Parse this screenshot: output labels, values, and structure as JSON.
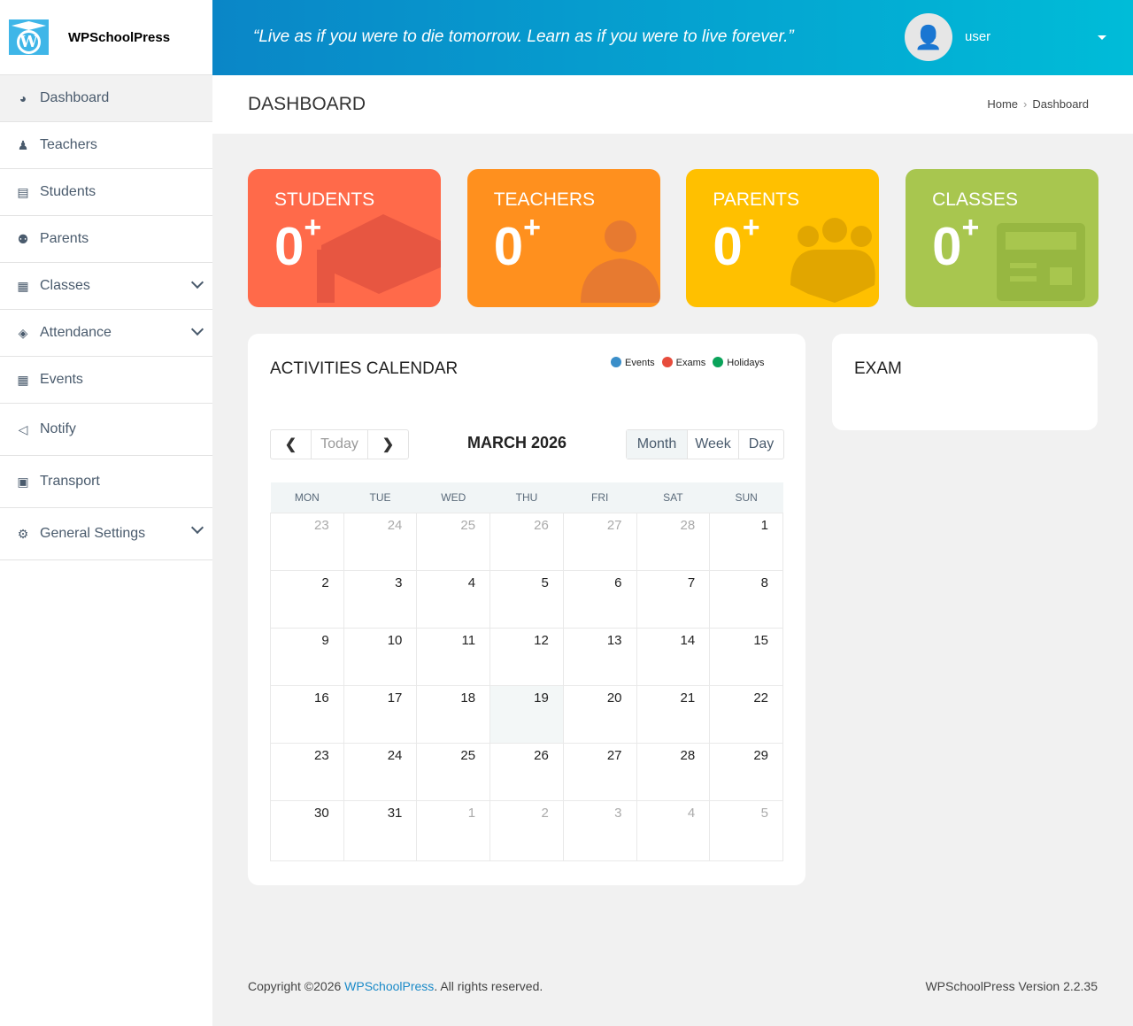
{
  "brand": {
    "name": "WPSchoolPress"
  },
  "sidebar": {
    "items": [
      {
        "label": "Dashboard",
        "icon": "dashboard-icon",
        "glyph": "◕",
        "active": true
      },
      {
        "label": "Teachers",
        "icon": "teacher-icon",
        "glyph": "♟"
      },
      {
        "label": "Students",
        "icon": "student-card-icon",
        "glyph": "▤"
      },
      {
        "label": "Parents",
        "icon": "parents-icon",
        "glyph": "⚉"
      },
      {
        "label": "Classes",
        "icon": "classes-icon",
        "glyph": "▦",
        "expand": true
      },
      {
        "label": "Attendance",
        "icon": "attendance-icon",
        "glyph": "◈",
        "expand": true
      },
      {
        "label": "Events",
        "icon": "calendar-icon",
        "glyph": "▦"
      },
      {
        "label": "Notify",
        "icon": "megaphone-icon",
        "glyph": "◁"
      },
      {
        "label": "Transport",
        "icon": "bus-icon",
        "glyph": "▣"
      },
      {
        "label": "General Settings",
        "icon": "gear-icon",
        "glyph": "⚙",
        "expand": true
      }
    ]
  },
  "header": {
    "quote": "“Live as if you were to die tomorrow. Learn as if you were to live forever.”",
    "user": "user"
  },
  "page": {
    "title": "DASHBOARD",
    "breadcrumb": [
      "Home",
      "Dashboard"
    ]
  },
  "cards": [
    {
      "label": "STUDENTS",
      "value": "0",
      "suffix": "+",
      "color": "#ff6a4a",
      "icon": "graduation-cap-icon"
    },
    {
      "label": "TEACHERS",
      "value": "0",
      "suffix": "+",
      "color": "#ff901e",
      "icon": "teacher-icon"
    },
    {
      "label": "PARENTS",
      "value": "0",
      "suffix": "+",
      "color": "#ffc000",
      "icon": "group-icon"
    },
    {
      "label": "CLASSES",
      "value": "0",
      "suffix": "+",
      "color": "#a8c64f",
      "icon": "classroom-icon"
    }
  ],
  "calendar": {
    "title": "ACTIVITIES CALENDAR",
    "legend": [
      {
        "label": "Events",
        "color": "#3a8ec9"
      },
      {
        "label": "Exams",
        "color": "#e74c3c"
      },
      {
        "label": "Holidays",
        "color": "#0aa35a"
      }
    ],
    "nav": {
      "today": "Today"
    },
    "month_label": "MARCH 2026",
    "views": [
      "Month",
      "Week",
      "Day"
    ],
    "active_view": "Month",
    "weekdays": [
      "MON",
      "TUE",
      "WED",
      "THU",
      "FRI",
      "SAT",
      "SUN"
    ],
    "weeks": [
      [
        "23",
        "24",
        "25",
        "26",
        "27",
        "28",
        "1"
      ],
      [
        "2",
        "3",
        "4",
        "5",
        "6",
        "7",
        "8"
      ],
      [
        "9",
        "10",
        "11",
        "12",
        "13",
        "14",
        "15"
      ],
      [
        "16",
        "17",
        "18",
        "19",
        "20",
        "21",
        "22"
      ],
      [
        "23",
        "24",
        "25",
        "26",
        "27",
        "28",
        "29"
      ],
      [
        "30",
        "31",
        "1",
        "2",
        "3",
        "4",
        "5"
      ]
    ],
    "today": "19"
  },
  "exam": {
    "title": "EXAM"
  },
  "footer": {
    "copyright_prefix": "Copyright ©2026 ",
    "link": "WPSchoolPress",
    "copyright_suffix": ". All rights reserved.",
    "version": "WPSchoolPress Version 2.2.35"
  }
}
